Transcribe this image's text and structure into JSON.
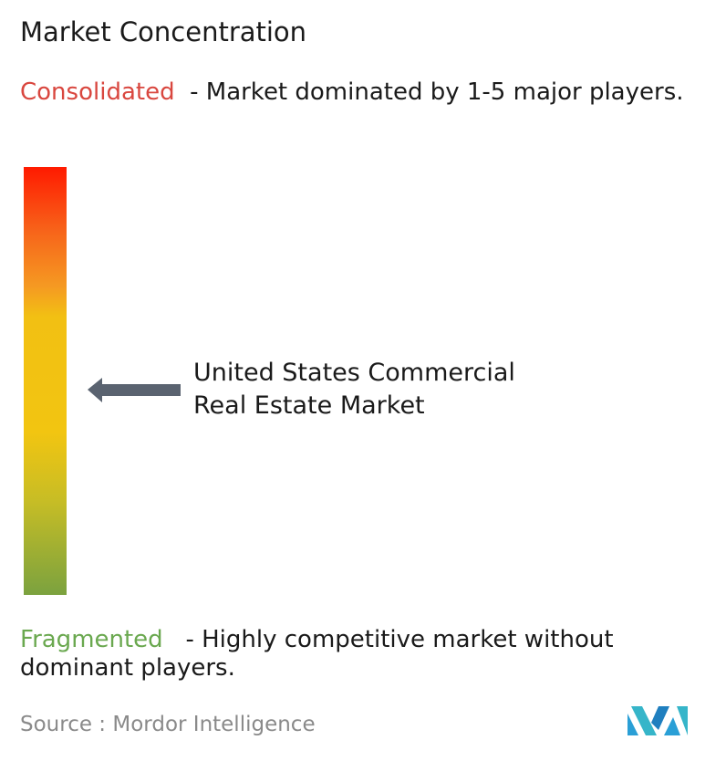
{
  "title": "Market Concentration",
  "consolidated": {
    "label": "Consolidated",
    "description": "- Market dominated by 1-5 major players."
  },
  "fragmented": {
    "label": "Fragmented",
    "description": "- Highly competitive market without dominant players."
  },
  "market": {
    "lines": [
      "United States Commercial",
      "Real Estate Market"
    ]
  },
  "source": {
    "label": "Source :",
    "name": "Mordor Intelligence"
  }
}
